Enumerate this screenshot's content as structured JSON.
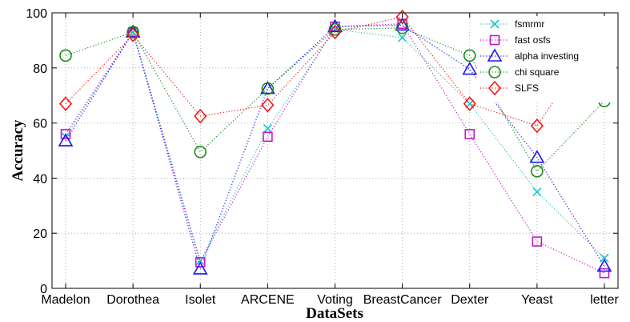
{
  "chart_data": {
    "type": "line",
    "xlabel": "DataSets",
    "ylabel": "Accuracy",
    "categories": [
      "Madelon",
      "Dorothea",
      "Isolet",
      "ARCENE",
      "Voting",
      "BreastCancer",
      "Dexter",
      "Yeast",
      "letter"
    ],
    "ylim": [
      0,
      100
    ],
    "yticks": [
      0,
      20,
      40,
      60,
      80,
      100
    ],
    "grid": true,
    "legend_position": "top-right",
    "series": [
      {
        "name": "fsmrmr",
        "marker": "x",
        "color": "#19c5c5",
        "values": [
          55,
          93,
          10,
          58,
          94,
          91,
          67,
          35,
          11
        ]
      },
      {
        "name": "fast osfs",
        "marker": "square",
        "color": "#c419c4",
        "values": [
          56,
          93,
          9.5,
          55,
          95,
          96,
          56,
          17,
          5.5
        ]
      },
      {
        "name": "alpha investing",
        "marker": "triangle",
        "color": "#1919f0",
        "values": [
          53.5,
          93,
          7,
          72.5,
          95,
          95.5,
          79.5,
          47.5,
          8
        ]
      },
      {
        "name": "chi square",
        "marker": "circle",
        "color": "#1a8a1a",
        "values": [
          84.5,
          93,
          49.5,
          72.5,
          94,
          94.5,
          84.5,
          42.5,
          68
        ]
      },
      {
        "name": "SLFS",
        "marker": "diamond",
        "color": "#f01919",
        "values": [
          67,
          92,
          62.5,
          66.5,
          93,
          98.5,
          67,
          59,
          95
        ]
      }
    ]
  }
}
